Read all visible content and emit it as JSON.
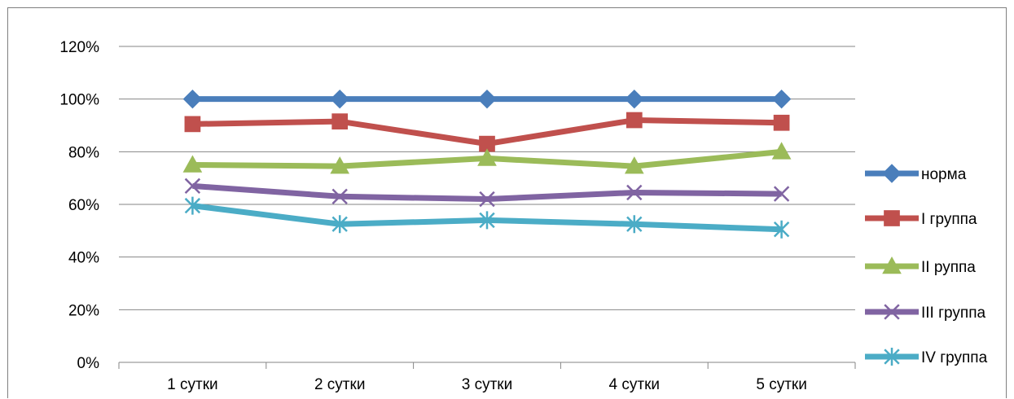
{
  "chart_data": {
    "type": "line",
    "title": "",
    "xlabel": "",
    "ylabel": "",
    "ylim": [
      0,
      120
    ],
    "yticks": [
      0,
      20,
      40,
      60,
      80,
      100,
      120
    ],
    "ytick_labels": [
      "0%",
      "20%",
      "40%",
      "60%",
      "80%",
      "100%",
      "120%"
    ],
    "grid": "horizontal",
    "legend_position": "right",
    "categories": [
      "1 сутки",
      "2 сутки",
      "3 сутки",
      "4 сутки",
      "5 сутки"
    ],
    "series": [
      {
        "name": "норма",
        "color": "#4a7ebb",
        "marker": "diamond",
        "values": [
          100,
          100,
          100,
          100,
          100
        ]
      },
      {
        "name": "I группа",
        "color": "#c0504d",
        "marker": "square",
        "values": [
          90.5,
          91.5,
          83,
          92,
          91
        ]
      },
      {
        "name": "II руппа",
        "color": "#9bbb59",
        "marker": "triangle",
        "values": [
          75,
          74.5,
          77.5,
          74.5,
          80
        ]
      },
      {
        "name": "III группа",
        "color": "#8064a2",
        "marker": "x",
        "values": [
          67,
          63,
          62,
          64.5,
          64
        ]
      },
      {
        "name": "IV группа",
        "color": "#4bacc6",
        "marker": "star",
        "values": [
          59.5,
          52.5,
          54,
          52.5,
          50.5
        ]
      }
    ]
  }
}
